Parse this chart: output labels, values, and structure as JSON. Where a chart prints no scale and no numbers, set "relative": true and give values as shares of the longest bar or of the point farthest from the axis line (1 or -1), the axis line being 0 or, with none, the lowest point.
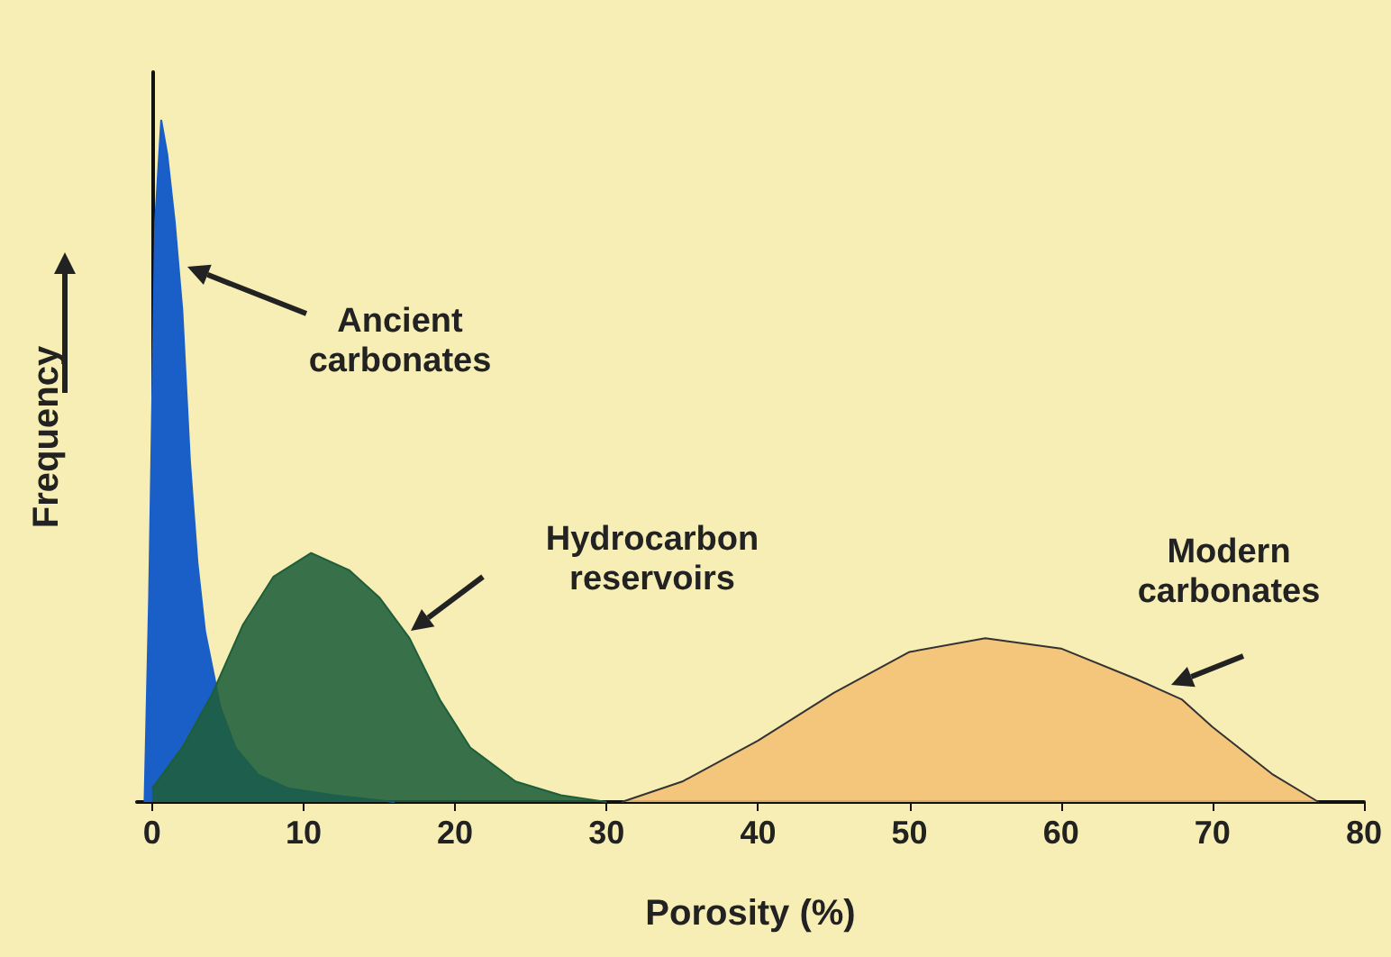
{
  "chart_data": {
    "type": "area",
    "relative": true,
    "xlabel": "Porosity (%)",
    "ylabel": "Frequency",
    "xlim": [
      -1,
      80
    ],
    "xticks": [
      0,
      10,
      20,
      30,
      40,
      50,
      60,
      70,
      80
    ],
    "series": [
      {
        "color": "#1a5fc8",
        "x": [
          -0.5,
          -0.2,
          0.2,
          0.6,
          1.0,
          1.5,
          2,
          2.5,
          3,
          3.5,
          4.5,
          5.5,
          7,
          9,
          12,
          16
        ],
        "values": [
          0,
          0.3,
          0.85,
          1.0,
          0.95,
          0.85,
          0.72,
          0.5,
          0.35,
          0.25,
          0.14,
          0.08,
          0.04,
          0.02,
          0.01,
          0
        ]
      },
      {
        "color": "#1e5e3a",
        "x": [
          0,
          2,
          4,
          6,
          8,
          10.5,
          13,
          15,
          17,
          19,
          21,
          24,
          27,
          30
        ],
        "values": [
          0.02,
          0.08,
          0.16,
          0.26,
          0.33,
          0.365,
          0.34,
          0.3,
          0.24,
          0.15,
          0.08,
          0.03,
          0.01,
          0
        ]
      },
      {
        "color": "#f2c074",
        "x": [
          31,
          35,
          40,
          45,
          50,
          55,
          60,
          65,
          68,
          70,
          74,
          77
        ],
        "values": [
          0,
          0.03,
          0.09,
          0.16,
          0.22,
          0.24,
          0.225,
          0.18,
          0.15,
          0.11,
          0.04,
          0
        ]
      }
    ],
    "annotations": [
      "Ancient carbonates",
      "Hydrocarbon reservoirs",
      "Modern carbonates"
    ]
  }
}
